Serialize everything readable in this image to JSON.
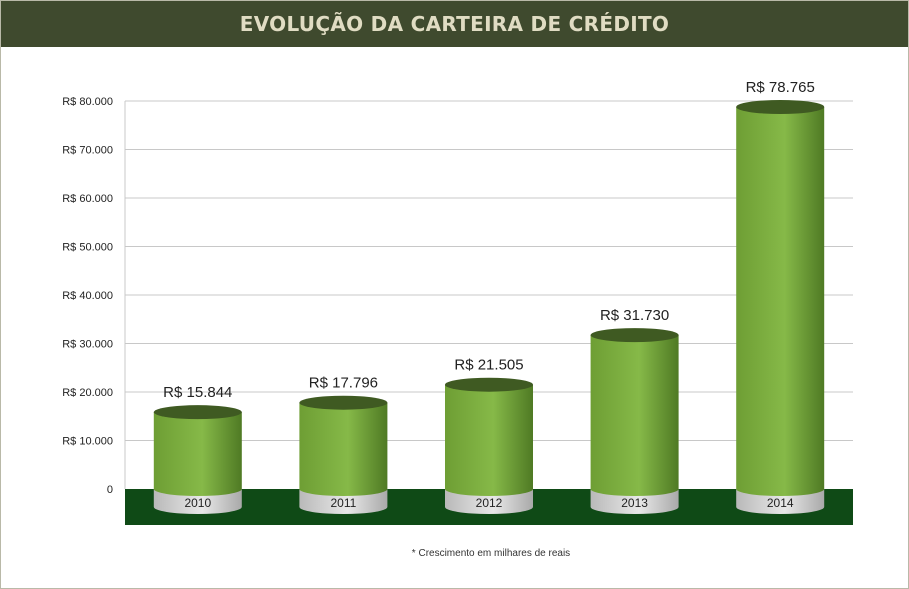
{
  "header": {
    "title": "EVOLUÇÃO DA CARTEIRA DE CRÉDITO"
  },
  "footnote": "* Crescimento em milhares de reais",
  "chart_data": {
    "type": "bar",
    "title": "EVOLUÇÃO DA CARTEIRA DE CRÉDITO",
    "categories": [
      "2010",
      "2011",
      "2012",
      "2013",
      "2014"
    ],
    "values": [
      15844,
      17796,
      21505,
      31730,
      78765
    ],
    "value_labels": [
      "R$ 15.844",
      "R$ 17.796",
      "R$ 21.505",
      "R$ 31.730",
      "R$ 78.765"
    ],
    "y_ticks": [
      0,
      10000,
      20000,
      30000,
      40000,
      50000,
      60000,
      70000,
      80000
    ],
    "y_tick_labels": [
      "0",
      "R$ 10.000",
      "R$ 20.000",
      "R$ 30.000",
      "R$ 40.000",
      "R$ 50.000",
      "R$ 60.000",
      "R$ 70.000",
      "R$ 80.000"
    ],
    "ylim": [
      0,
      80000
    ],
    "grid": true,
    "colors": {
      "bar": "#7cae3e",
      "bar_top": "#3f5a22",
      "base": "#d2d2d2",
      "floor": "#0f4a16",
      "header": "#3f4a2e"
    }
  }
}
